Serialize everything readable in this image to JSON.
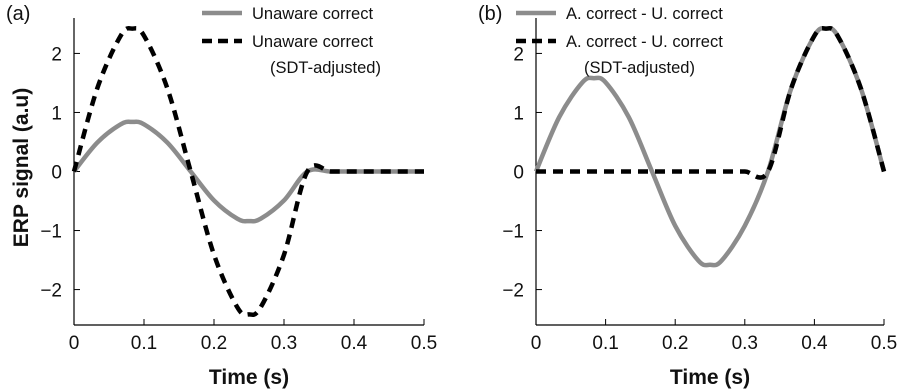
{
  "chart_data": [
    {
      "type": "line",
      "panel_label": "(a)",
      "xlabel": "Time (s)",
      "ylabel": "ERP signal (a.u)",
      "xlim": [
        0,
        0.5
      ],
      "ylim": [
        -2.6,
        2.6
      ],
      "x_ticks": [
        0,
        0.1,
        0.2,
        0.3,
        0.4,
        0.5
      ],
      "x_tick_labels": [
        "0",
        "0.1",
        "0.2",
        "0.3",
        "0.4",
        "0.5"
      ],
      "y_ticks": [
        -2,
        -1,
        0,
        1,
        2
      ],
      "y_tick_labels": [
        "−2",
        "−1",
        "0",
        "1",
        "2"
      ],
      "grid": false,
      "legend_position": "top-right",
      "series": [
        {
          "name": "Unaware correct",
          "style": "solid",
          "color": "#8c8c8c",
          "x": [
            0,
            0.0333,
            0.0667,
            0.0833,
            0.1,
            0.1333,
            0.1667,
            0.2,
            0.2333,
            0.25,
            0.2667,
            0.3,
            0.3333,
            0.3667,
            0.4,
            0.4333,
            0.4667,
            0.5
          ],
          "y": [
            0,
            0.49,
            0.8,
            0.84,
            0.8,
            0.49,
            0,
            -0.49,
            -0.8,
            -0.84,
            -0.8,
            -0.49,
            0,
            0,
            0,
            0,
            0,
            0
          ]
        },
        {
          "name": "Unaware correct (SDT-adjusted)",
          "legend_lines": [
            "Unaware correct",
            "(SDT-adjusted)"
          ],
          "style": "dashed",
          "color": "#000000",
          "x": [
            0,
            0.0333,
            0.0667,
            0.0833,
            0.1,
            0.1333,
            0.1667,
            0.2,
            0.2333,
            0.25,
            0.2667,
            0.3,
            0.3333,
            0.3667,
            0.4,
            0.4333,
            0.4667,
            0.5
          ],
          "y": [
            0,
            1.41,
            2.3,
            2.42,
            2.3,
            1.41,
            0,
            -1.41,
            -2.3,
            -2.42,
            -2.3,
            -1.41,
            0,
            0,
            0,
            0,
            0,
            0
          ]
        }
      ]
    },
    {
      "type": "line",
      "panel_label": "(b)",
      "xlabel": "Time (s)",
      "ylabel": "",
      "xlim": [
        0,
        0.5
      ],
      "ylim": [
        -2.6,
        2.6
      ],
      "x_ticks": [
        0,
        0.1,
        0.2,
        0.3,
        0.4,
        0.5
      ],
      "x_tick_labels": [
        "0",
        "0.1",
        "0.2",
        "0.3",
        "0.4",
        "0.5"
      ],
      "y_ticks": [
        -2,
        -1,
        0,
        1,
        2
      ],
      "y_tick_labels": [
        "−2",
        "−1",
        "0",
        "1",
        "2"
      ],
      "grid": false,
      "legend_position": "top-right",
      "series": [
        {
          "name": "A. correct - U. correct",
          "style": "solid",
          "color": "#8c8c8c",
          "x": [
            0,
            0.0333,
            0.0667,
            0.0833,
            0.1,
            0.1333,
            0.1667,
            0.2,
            0.2333,
            0.25,
            0.2667,
            0.3,
            0.3333,
            0.3667,
            0.4,
            0.4167,
            0.4333,
            0.4667,
            0.5
          ],
          "y": [
            0,
            0.92,
            1.51,
            1.58,
            1.51,
            0.92,
            0,
            -0.92,
            -1.51,
            -1.58,
            -1.51,
            -0.92,
            0,
            1.41,
            2.3,
            2.42,
            2.3,
            1.41,
            0
          ]
        },
        {
          "name": "A. correct - U. correct (SDT-adjusted)",
          "legend_lines": [
            "A. correct - U. correct",
            "(SDT-adjusted)"
          ],
          "style": "dashed",
          "color": "#000000",
          "x": [
            0,
            0.0333,
            0.0667,
            0.1,
            0.1333,
            0.1667,
            0.2,
            0.2333,
            0.2667,
            0.3,
            0.3333,
            0.3667,
            0.4,
            0.4167,
            0.4333,
            0.4667,
            0.5
          ],
          "y": [
            0,
            0,
            0,
            0,
            0,
            0,
            0,
            0,
            0,
            0,
            0,
            1.41,
            2.3,
            2.42,
            2.3,
            1.41,
            0
          ]
        }
      ]
    }
  ]
}
